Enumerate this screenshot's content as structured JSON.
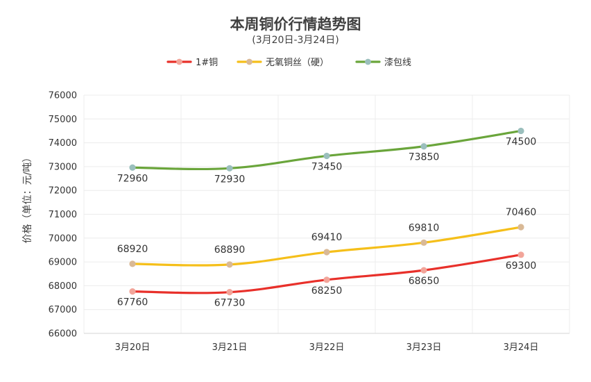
{
  "chart_data": {
    "type": "line",
    "title": "本周铜价行情趋势图",
    "subtitle": "(3月20日-3月24日)",
    "ylabel": "价格（单位：元/吨）",
    "xlabel": "",
    "categories": [
      "3月20日",
      "3月21日",
      "3月22日",
      "3月23日",
      "3月24日"
    ],
    "ylim": [
      66000,
      76000
    ],
    "yticks": [
      "66000",
      "67000",
      "68000",
      "69000",
      "70000",
      "71000",
      "72000",
      "73000",
      "74000",
      "75000",
      "76000"
    ],
    "grid": true,
    "legend_position": "top",
    "series": [
      {
        "name": "1#铜",
        "values": [
          67760,
          67730,
          68250,
          68650,
          69300
        ],
        "color": "#e8302a",
        "marker_color": "#f2a59a",
        "labels": [
          "67760",
          "67730",
          "68250",
          "68650",
          "69300"
        ],
        "label_pos": [
          "below",
          "below",
          "below",
          "below",
          "below"
        ]
      },
      {
        "name": "无氧铜丝（硬）",
        "values": [
          68920,
          68890,
          69410,
          69810,
          70460
        ],
        "color": "#f5bf1a",
        "marker_color": "#d9b996",
        "labels": [
          "68920",
          "68890",
          "69410",
          "69810",
          "70460"
        ],
        "label_pos": [
          "above",
          "above",
          "above",
          "above",
          "above"
        ]
      },
      {
        "name": "漆包线",
        "values": [
          72960,
          72930,
          73450,
          73850,
          74500
        ],
        "color": "#6aa53b",
        "marker_color": "#9bbfbd",
        "labels": [
          "72960",
          "72930",
          "73450",
          "73850",
          "74500"
        ],
        "label_pos": [
          "below",
          "below",
          "below",
          "below",
          "below"
        ]
      }
    ]
  }
}
